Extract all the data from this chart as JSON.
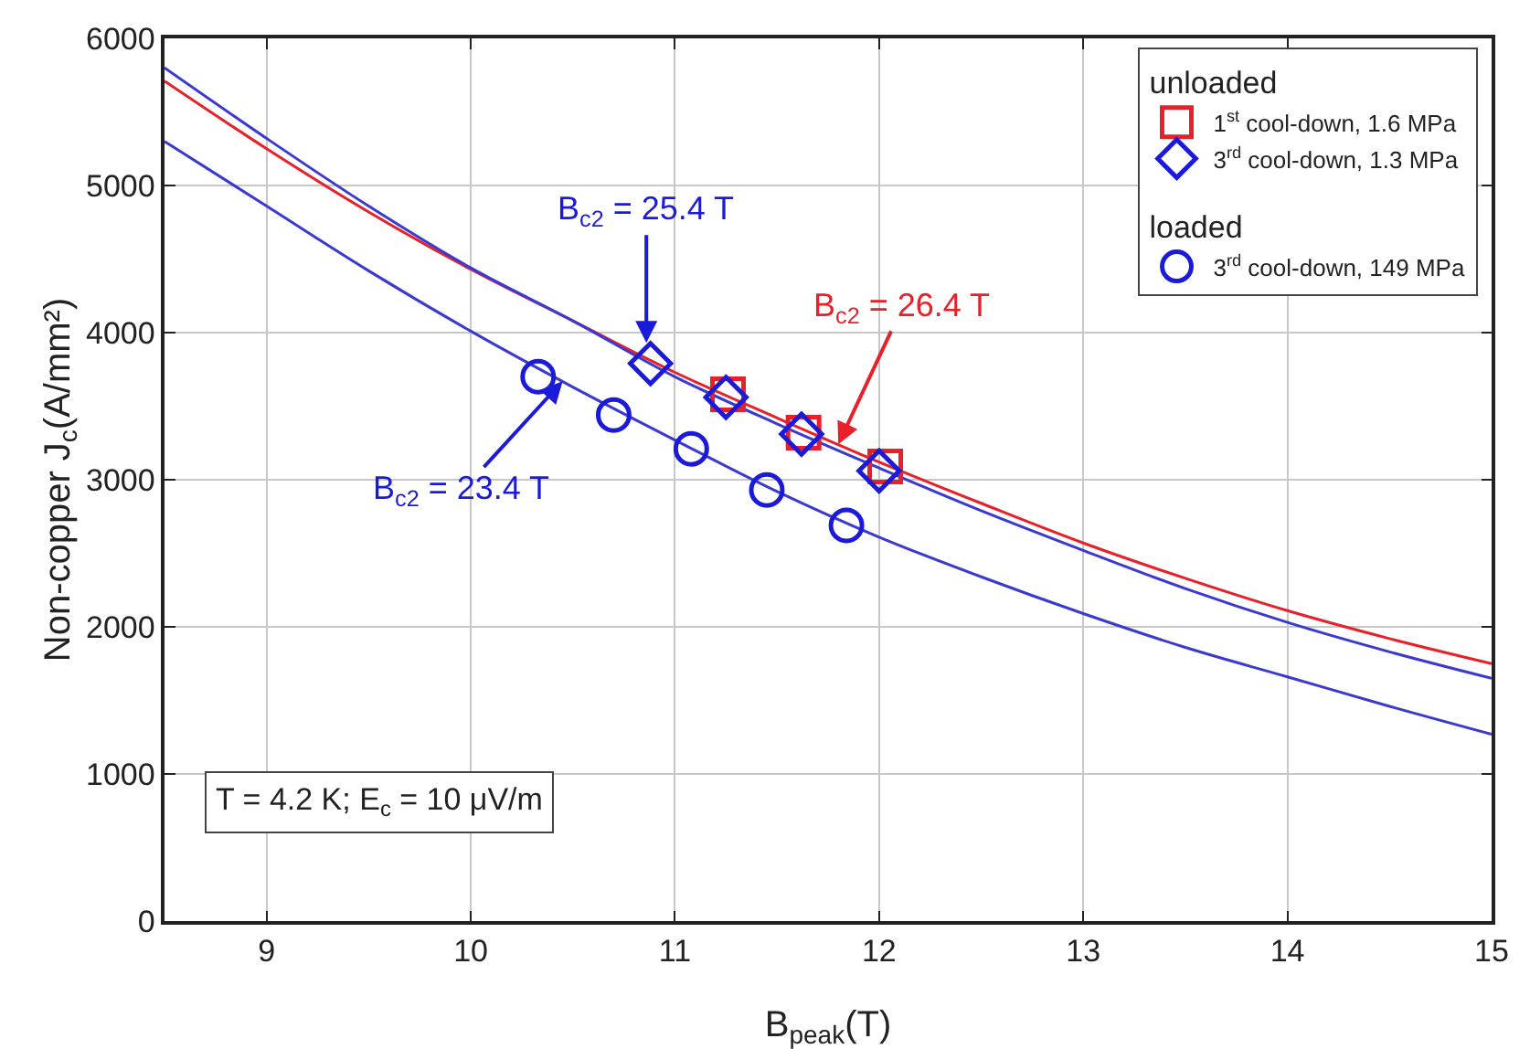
{
  "chart_data": {
    "type": "scatter",
    "xlabel": "B$_{peak}$(T)",
    "ylabel": "Non-copper J$_{c}$(A/mm²)",
    "xlim": [
      8.5,
      15
    ],
    "xticks": [
      9,
      10,
      11,
      12,
      13,
      14,
      15
    ],
    "ylim": [
      0,
      6000
    ],
    "yticks": [
      0,
      1000,
      2000,
      3000,
      4000,
      5000,
      6000
    ],
    "grid": true,
    "legend": "top right",
    "series": [
      {
        "name": "1$^{st}$ cool-down, 1.6 MPa",
        "color": "#e8202a",
        "marker": "square",
        "x": [
          11.26,
          11.63,
          12.03
        ],
        "values": [
          3580,
          3320,
          3090
        ]
      },
      {
        "name": "3$^{rd}$ cool-down, 1.3 MPa",
        "color": "#1a1ad8",
        "marker": "diamond",
        "x": [
          10.88,
          11.25,
          11.62,
          12.0
        ],
        "values": [
          3790,
          3560,
          3310,
          3060
        ]
      },
      {
        "name": "3$^{rd}$ cool-down, 149 MPa",
        "color": "#1a1ad8",
        "marker": "circle",
        "x": [
          10.33,
          10.7,
          11.08,
          11.45,
          11.84
        ],
        "values": [
          3700,
          3440,
          3210,
          2930,
          2690
        ]
      },
      {
        "type": "line",
        "color": "#e8202a",
        "x": [
          8.5,
          9,
          9.5,
          10,
          10.5,
          11,
          11.5,
          12,
          12.5,
          13,
          13.5,
          14,
          14.5,
          15
        ],
        "values": [
          5710,
          5250,
          4820,
          4430,
          4080,
          3730,
          3420,
          3120,
          2840,
          2570,
          2330,
          2110,
          1920,
          1750
        ]
      },
      {
        "type": "line",
        "color": "#3a3ad0",
        "x": [
          8.5,
          9,
          9.5,
          10,
          10.5,
          11,
          11.5,
          12,
          12.5,
          13,
          13.5,
          14,
          14.5,
          15
        ],
        "values": [
          5800,
          5320,
          4860,
          4440,
          4080,
          3700,
          3380,
          3080,
          2790,
          2520,
          2260,
          2030,
          1830,
          1650
        ]
      },
      {
        "type": "line",
        "color": "#3a3ad0",
        "x": [
          8.5,
          9,
          9.5,
          10,
          10.5,
          11,
          11.5,
          12,
          12.5,
          13,
          13.5,
          14,
          14.5,
          15
        ],
        "values": [
          5300,
          4860,
          4420,
          4010,
          3630,
          3270,
          2920,
          2610,
          2340,
          2090,
          1860,
          1660,
          1460,
          1270
        ]
      }
    ],
    "annotations": [
      {
        "text": "B$_{c2}$ = 25.4 T",
        "x": 10.86,
        "y": 3930
      },
      {
        "text": "B$_{c2}$ = 26.4 T",
        "x": 11.8,
        "y": 3240
      },
      {
        "text": "B$_{c2}$ = 23.4 T",
        "x": 10.45,
        "y": 3670
      },
      "unloaded",
      "loaded",
      "T = 4.2 K; E$_{c}$ = 10 μV/m"
    ]
  }
}
